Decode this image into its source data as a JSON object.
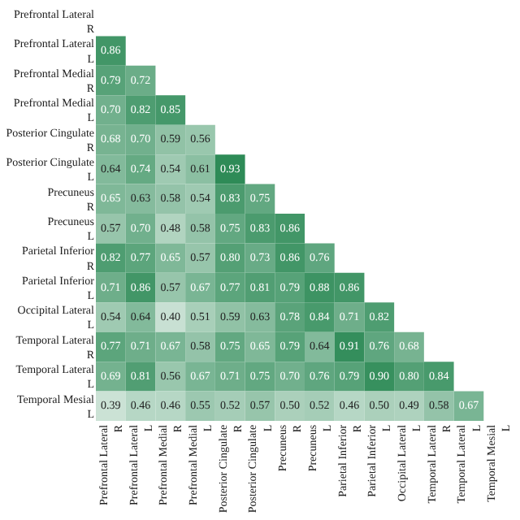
{
  "chart_data": {
    "type": "heatmap",
    "color": "#2e8b57",
    "categories": [
      "Prefrontal Lateral R",
      "Prefrontal Lateral L",
      "Prefrontal Medial R",
      "Prefrontal Medial L",
      "Posterior Cingulate R",
      "Posterior Cingulate L",
      "Precuneus R",
      "Precuneus L",
      "Parietal Inferior R",
      "Parietal Inferior L",
      "Occipital Lateral L",
      "Temporal Lateral R",
      "Temporal Lateral L",
      "Temporal Mesial L"
    ],
    "y_categories": [
      "Prefrontal Lateral R",
      "Prefrontal Lateral L",
      "Prefrontal Medial R",
      "Prefrontal Medial L",
      "Posterior Cingulate R",
      "Posterior Cingulate L",
      "Precuneus R",
      "Precuneus L",
      "Parietal Inferior R",
      "Parietal Inferior L",
      "Occipital Lateral L",
      "Temporal Lateral R",
      "Temporal Lateral L",
      "Temporal Mesial L"
    ],
    "cells": [
      [
        null,
        null,
        null,
        null,
        null,
        null,
        null,
        null,
        null,
        null,
        null,
        null,
        null,
        null
      ],
      [
        0.86,
        null,
        null,
        null,
        null,
        null,
        null,
        null,
        null,
        null,
        null,
        null,
        null,
        null
      ],
      [
        0.79,
        0.72,
        null,
        null,
        null,
        null,
        null,
        null,
        null,
        null,
        null,
        null,
        null,
        null
      ],
      [
        0.7,
        0.82,
        0.85,
        null,
        null,
        null,
        null,
        null,
        null,
        null,
        null,
        null,
        null,
        null
      ],
      [
        0.68,
        0.7,
        0.59,
        0.56,
        null,
        null,
        null,
        null,
        null,
        null,
        null,
        null,
        null,
        null
      ],
      [
        0.64,
        0.74,
        0.54,
        0.61,
        0.93,
        null,
        null,
        null,
        null,
        null,
        null,
        null,
        null,
        null
      ],
      [
        0.65,
        0.63,
        0.58,
        0.54,
        0.83,
        0.75,
        null,
        null,
        null,
        null,
        null,
        null,
        null,
        null
      ],
      [
        0.57,
        0.7,
        0.48,
        0.58,
        0.75,
        0.83,
        0.86,
        null,
        null,
        null,
        null,
        null,
        null,
        null
      ],
      [
        0.82,
        0.77,
        0.65,
        0.57,
        0.8,
        0.73,
        0.86,
        0.76,
        null,
        null,
        null,
        null,
        null,
        null
      ],
      [
        0.71,
        0.86,
        0.57,
        0.67,
        0.77,
        0.81,
        0.79,
        0.88,
        0.86,
        null,
        null,
        null,
        null,
        null
      ],
      [
        0.54,
        0.64,
        0.4,
        0.51,
        0.59,
        0.63,
        0.78,
        0.84,
        0.71,
        0.82,
        null,
        null,
        null,
        null
      ],
      [
        0.77,
        0.71,
        0.67,
        0.58,
        0.75,
        0.65,
        0.79,
        0.64,
        0.91,
        0.76,
        0.68,
        null,
        null,
        null
      ],
      [
        0.69,
        0.81,
        0.56,
        0.67,
        0.71,
        0.75,
        0.7,
        0.76,
        0.79,
        0.9,
        0.8,
        0.84,
        null,
        null
      ],
      [
        0.39,
        0.46,
        0.46,
        0.55,
        0.52,
        0.57,
        0.5,
        0.52,
        0.46,
        0.5,
        0.49,
        0.58,
        0.67,
        null
      ]
    ],
    "cell_labels": [
      [
        null,
        null,
        null,
        null,
        null,
        null,
        null,
        null,
        null,
        null,
        null,
        null,
        null,
        null
      ],
      [
        "0.86",
        null,
        null,
        null,
        null,
        null,
        null,
        null,
        null,
        null,
        null,
        null,
        null,
        null
      ],
      [
        "0.79",
        "0.72",
        null,
        null,
        null,
        null,
        null,
        null,
        null,
        null,
        null,
        null,
        null,
        null
      ],
      [
        "0.70",
        "0.82",
        "0.85",
        null,
        null,
        null,
        null,
        null,
        null,
        null,
        null,
        null,
        null,
        null
      ],
      [
        "0.68",
        "0.70",
        "0.59",
        "0.56",
        null,
        null,
        null,
        null,
        null,
        null,
        null,
        null,
        null,
        null
      ],
      [
        "0.64",
        "0.74",
        "0.54",
        "0.61",
        "0.93",
        null,
        null,
        null,
        null,
        null,
        null,
        null,
        null,
        null
      ],
      [
        "0.65",
        "0.63",
        "0.58",
        "0.54",
        "0.83",
        "0.75",
        null,
        null,
        null,
        null,
        null,
        null,
        null,
        null
      ],
      [
        "0.57",
        "0.70",
        "0.48",
        "0.58",
        "0.75",
        "0.83",
        "0.86",
        null,
        null,
        null,
        null,
        null,
        null,
        null
      ],
      [
        "0.82",
        "0.77",
        "0.65",
        "0.57",
        "0.80",
        "0.73",
        "0.86",
        "0.76",
        null,
        null,
        null,
        null,
        null,
        null
      ],
      [
        "0.71",
        "0.86",
        "0.57",
        "0.67",
        "0.77",
        "0.81",
        "0.79",
        "0.88",
        "0.86",
        null,
        null,
        null,
        null,
        null
      ],
      [
        "0.54",
        "0.64",
        "0.40",
        "0.51",
        "0.59",
        "0.63",
        "0.78",
        "0.84",
        "0.71",
        "0.82",
        null,
        null,
        null,
        null
      ],
      [
        "0.77",
        "0.71",
        "0.67",
        "0.58",
        "0.75",
        "0.65",
        "0.79",
        "0.64",
        "0.91",
        "0.76",
        "0.68",
        null,
        null,
        null
      ],
      [
        "0.69",
        "0.81",
        "0.56",
        "0.67",
        "0.71",
        "0.75",
        "0.70",
        "0.76",
        "0.79",
        "0.90",
        "0.80",
        "0.84",
        null,
        null
      ],
      [
        "0.39",
        "0.46",
        "0.46",
        "0.55",
        "0.52",
        "0.57",
        "0.50",
        "0.52",
        "0.46",
        "0.50",
        "0.49",
        "0.58",
        "0.67",
        null
      ]
    ]
  }
}
